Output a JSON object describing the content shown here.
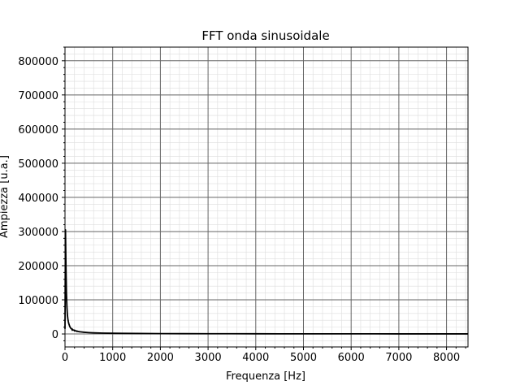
{
  "chart_data": {
    "type": "line",
    "title": "FFT onda sinusoidale",
    "xlabel": "Frequenza [Hz]",
    "ylabel": "Ampiezza [u.a.]",
    "xlim": [
      0,
      8450
    ],
    "ylim": [
      -38000,
      840000
    ],
    "x_ticks": [
      0,
      1000,
      2000,
      3000,
      4000,
      5000,
      6000,
      7000,
      8000
    ],
    "y_ticks": [
      0,
      100000,
      200000,
      300000,
      400000,
      500000,
      600000,
      700000,
      800000
    ],
    "x_minor_step": 200,
    "y_minor_step": 20000,
    "grid": {
      "major": true,
      "minor": true,
      "major_color": "#666666",
      "minor_color": "#dddddd"
    },
    "legend": "none",
    "series": [
      {
        "color": "#000000",
        "style": "line-with-error-bars",
        "x": [
          0,
          10,
          20,
          30,
          40,
          50,
          60,
          70,
          80,
          100,
          120,
          150,
          200,
          250,
          300,
          400,
          500,
          600,
          800,
          1000,
          1200,
          1500,
          2000,
          2500,
          3000,
          3500,
          4000,
          4500,
          5000,
          5500,
          6000,
          6500,
          7000,
          7500,
          8000,
          8450
        ],
        "y": [
          15000,
          305000,
          200000,
          120000,
          80000,
          56000,
          44000,
          36000,
          30000,
          22000,
          17000,
          13000,
          10000,
          8000,
          6600,
          5000,
          4000,
          3300,
          2500,
          2000,
          1700,
          1400,
          1000,
          850,
          700,
          600,
          520,
          460,
          400,
          360,
          320,
          290,
          260,
          240,
          220,
          200
        ],
        "error": [
          0,
          0,
          0,
          0,
          0,
          0,
          0,
          0,
          0,
          0,
          0,
          4000,
          3000,
          2500,
          2000,
          1500,
          1300,
          1100,
          900,
          800,
          700,
          600,
          500,
          400,
          350,
          300,
          260,
          230,
          200,
          180,
          160,
          150,
          130,
          120,
          110,
          100
        ]
      }
    ]
  }
}
